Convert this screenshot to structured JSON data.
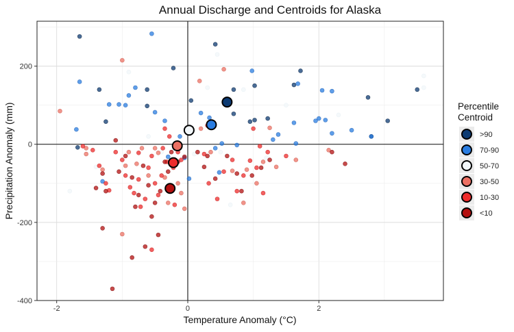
{
  "chart_data": {
    "type": "scatter",
    "title": "Annual Discharge and Centroids for Alaska",
    "xlabel": "Temperature Anomaly (°C)",
    "ylabel": "Precipitation Anomaly (mm)",
    "xlim": [
      -2.3,
      3.9
    ],
    "ylim": [
      -400,
      315
    ],
    "xticks": [
      -2,
      0,
      2
    ],
    "yticks": [
      -400,
      -200,
      0,
      200
    ],
    "x_tick_labels": [
      "-2",
      "0",
      "2"
    ],
    "y_tick_labels": [
      "-400",
      "-200",
      "0",
      "200"
    ],
    "grid": true,
    "legend": {
      "title": [
        "Percentile",
        "Centroid"
      ],
      "position": "right"
    },
    "colors": {
      ">90": "#0d3b73",
      "70-90": "#2a7de1",
      "50-70": "#f2f7fa",
      "30-50": "#ec7063",
      "10-30": "#ee2b2b",
      "<10": "#b30f0f"
    },
    "series": [
      {
        "name": ">90",
        "points": [
          [
            -1.65,
            276
          ],
          [
            -1.35,
            140
          ],
          [
            -1.25,
            58
          ],
          [
            -1.68,
            -8
          ],
          [
            -0.62,
            140
          ],
          [
            -0.62,
            98
          ],
          [
            -0.22,
            195
          ],
          [
            0.05,
            112
          ],
          [
            0.42,
            256
          ],
          [
            0.7,
            140
          ],
          [
            0.95,
            58
          ],
          [
            1.02,
            150
          ],
          [
            1.02,
            62
          ],
          [
            1.22,
            66
          ],
          [
            1.62,
            152
          ],
          [
            1.72,
            188
          ],
          [
            2.75,
            120
          ],
          [
            2.8,
            20
          ],
          [
            3.05,
            60
          ],
          [
            3.5,
            140
          ],
          [
            0.7,
            78
          ]
        ],
        "centroid": [
          0.6,
          108
        ]
      },
      {
        "name": "70-90",
        "points": [
          [
            -1.65,
            160
          ],
          [
            -1.7,
            38
          ],
          [
            -1.3,
            -95
          ],
          [
            -1.05,
            102
          ],
          [
            -0.95,
            100
          ],
          [
            -0.55,
            283
          ],
          [
            -0.9,
            125
          ],
          [
            -0.8,
            145
          ],
          [
            -0.5,
            82
          ],
          [
            -0.35,
            60
          ],
          [
            -0.12,
            20
          ],
          [
            -0.05,
            -35
          ],
          [
            0.02,
            -88
          ],
          [
            0.2,
            80
          ],
          [
            0.33,
            68
          ],
          [
            0.42,
            -10
          ],
          [
            0.52,
            2
          ],
          [
            0.75,
            -2
          ],
          [
            0.98,
            188
          ],
          [
            1.3,
            12
          ],
          [
            1.38,
            25
          ],
          [
            1.62,
            55
          ],
          [
            1.65,
            2
          ],
          [
            1.68,
            155
          ],
          [
            1.95,
            60
          ],
          [
            2.0,
            66
          ],
          [
            2.05,
            138
          ],
          [
            2.1,
            62
          ],
          [
            2.2,
            136
          ],
          [
            2.2,
            28
          ],
          [
            2.5,
            36
          ],
          [
            2.8,
            20
          ],
          [
            0.48,
            -72
          ],
          [
            -0.3,
            -32
          ],
          [
            -1.2,
            102
          ]
        ]
      },
      {
        "name": "50-70",
        "points": [
          [
            -1.4,
            -58
          ],
          [
            -0.9,
            185
          ],
          [
            -0.4,
            -20
          ],
          [
            0.3,
            145
          ],
          [
            0.5,
            -20
          ],
          [
            0.65,
            -155
          ],
          [
            0.85,
            140
          ],
          [
            1.2,
            -35
          ],
          [
            1.5,
            100
          ],
          [
            2.3,
            75
          ],
          [
            3.6,
            175
          ],
          [
            3.6,
            145
          ],
          [
            -0.15,
            -5
          ],
          [
            0.1,
            -25
          ],
          [
            -1.8,
            -120
          ],
          [
            0.45,
            230
          ],
          [
            -0.6,
            20
          ]
        ]
      },
      {
        "name": "30-50",
        "points": [
          [
            -1.95,
            85
          ],
          [
            -1.55,
            -10
          ],
          [
            -1.3,
            -65
          ],
          [
            -1.0,
            -230
          ],
          [
            -1.0,
            215
          ],
          [
            -0.9,
            -20
          ],
          [
            -0.78,
            -50
          ],
          [
            -0.7,
            -10
          ],
          [
            -0.5,
            -10
          ],
          [
            -0.45,
            -22
          ],
          [
            -0.35,
            -85
          ],
          [
            -0.3,
            -150
          ],
          [
            -0.2,
            -5
          ],
          [
            -0.15,
            -100
          ],
          [
            -0.1,
            -125
          ],
          [
            -0.05,
            -165
          ],
          [
            0.18,
            162
          ],
          [
            0.2,
            40
          ],
          [
            0.35,
            -20
          ],
          [
            0.55,
            192
          ],
          [
            0.68,
            -68
          ],
          [
            0.85,
            -150
          ],
          [
            0.9,
            -65
          ],
          [
            1.05,
            -100
          ],
          [
            1.15,
            -45
          ],
          [
            1.25,
            42
          ],
          [
            1.35,
            -58
          ],
          [
            1.65,
            -40
          ],
          [
            2.15,
            -15
          ],
          [
            -1.55,
            -25
          ],
          [
            -0.95,
            -55
          ],
          [
            -0.6,
            -80
          ]
        ]
      },
      {
        "name": "10-30",
        "points": [
          [
            -1.6,
            -5
          ],
          [
            -1.45,
            -15
          ],
          [
            -1.35,
            -55
          ],
          [
            -1.25,
            -100
          ],
          [
            -1.2,
            -118
          ],
          [
            -1.1,
            -20
          ],
          [
            -1.0,
            -40
          ],
          [
            -0.95,
            -80
          ],
          [
            -0.88,
            -110
          ],
          [
            -0.82,
            -125
          ],
          [
            -0.75,
            -90
          ],
          [
            -0.72,
            -160
          ],
          [
            -0.65,
            -140
          ],
          [
            -0.6,
            -60
          ],
          [
            -0.55,
            -30
          ],
          [
            -0.5,
            -100
          ],
          [
            -0.45,
            -130
          ],
          [
            -0.4,
            -80
          ],
          [
            -0.35,
            40
          ],
          [
            -0.32,
            -45
          ],
          [
            -0.28,
            20
          ],
          [
            -0.25,
            -110
          ],
          [
            -0.22,
            -60
          ],
          [
            -0.2,
            -155
          ],
          [
            -0.15,
            -20
          ],
          [
            -0.1,
            -40
          ],
          [
            0.25,
            -25
          ],
          [
            0.32,
            -100
          ],
          [
            0.45,
            -140
          ],
          [
            0.55,
            -70
          ],
          [
            0.68,
            -40
          ],
          [
            0.75,
            -120
          ],
          [
            0.85,
            -80
          ],
          [
            0.95,
            -42
          ],
          [
            1.0,
            40
          ],
          [
            1.05,
            -60
          ],
          [
            1.15,
            -125
          ],
          [
            1.22,
            -20
          ],
          [
            1.5,
            -30
          ],
          [
            -0.55,
            -270
          ],
          [
            -0.38,
            -10
          ],
          [
            0.3,
            48
          ],
          [
            1.1,
            -5
          ],
          [
            -0.75,
            -22
          ]
        ]
      },
      {
        "name": "<10",
        "points": [
          [
            -1.15,
            -370
          ],
          [
            -1.3,
            -215
          ],
          [
            -0.85,
            -290
          ],
          [
            -0.65,
            -262
          ],
          [
            -0.45,
            -232
          ],
          [
            -1.4,
            -112
          ],
          [
            -1.25,
            -120
          ],
          [
            -1.05,
            -70
          ],
          [
            -0.95,
            -30
          ],
          [
            -0.85,
            -85
          ],
          [
            -0.75,
            -130
          ],
          [
            -0.68,
            -55
          ],
          [
            -0.6,
            -105
          ],
          [
            -0.5,
            -150
          ],
          [
            -0.42,
            -120
          ],
          [
            -0.35,
            -45
          ],
          [
            -0.3,
            -70
          ],
          [
            -0.25,
            -20
          ],
          [
            -0.15,
            -45
          ],
          [
            -0.05,
            -32
          ],
          [
            0.15,
            -20
          ],
          [
            0.25,
            -58
          ],
          [
            0.3,
            -30
          ],
          [
            0.42,
            -88
          ],
          [
            0.6,
            -30
          ],
          [
            0.75,
            -75
          ],
          [
            0.82,
            -120
          ],
          [
            0.98,
            -80
          ],
          [
            1.12,
            -60
          ],
          [
            1.25,
            -40
          ],
          [
            2.2,
            -20
          ],
          [
            2.4,
            -50
          ],
          [
            -1.1,
            10
          ],
          [
            -1.3,
            -75
          ],
          [
            -0.8,
            -160
          ],
          [
            -0.55,
            -185
          ]
        ]
      }
    ],
    "centroids": [
      {
        "name": ">90",
        "x": 0.6,
        "y": 108
      },
      {
        "name": "70-90",
        "x": 0.36,
        "y": 50
      },
      {
        "name": "50-70",
        "x": 0.02,
        "y": 36
      },
      {
        "name": "30-50",
        "x": -0.16,
        "y": -4
      },
      {
        "name": "10-30",
        "x": -0.22,
        "y": -47
      },
      {
        "name": "<10",
        "x": -0.27,
        "y": -113
      }
    ]
  }
}
